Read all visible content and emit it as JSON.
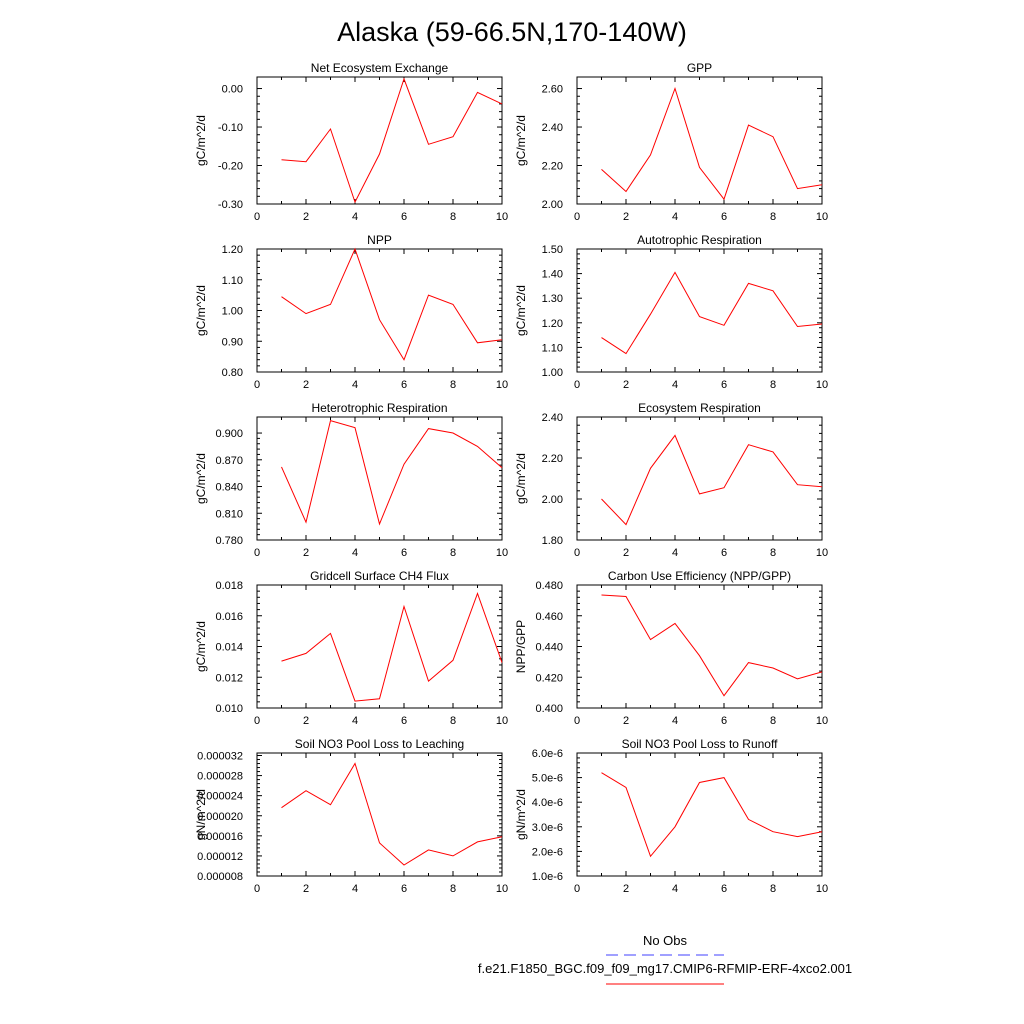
{
  "figure": {
    "title": "Alaska (59-66.5N,170-140W)"
  },
  "legend": {
    "entries": [
      {
        "label": "No Obs",
        "color": "#4040ff",
        "style": "dashed"
      },
      {
        "label": "f.e21.F1850_BGC.f09_f09_mg17.CMIP6-RFMIP-ERF-4xco2.001",
        "color": "#ff0000",
        "style": "solid"
      }
    ]
  },
  "chart_data": [
    {
      "type": "line",
      "title": "Net Ecosystem Exchange",
      "ylabel": "gC/m^2/d",
      "xlim": [
        0,
        10
      ],
      "ylim": [
        -0.3,
        0.03
      ],
      "xticks": [
        "0",
        "2",
        "4",
        "6",
        "8",
        "10"
      ],
      "yticks": [
        -0.3,
        -0.2,
        -0.1,
        0.0
      ],
      "ytick_labels": [
        "-0.30",
        "-0.20",
        "-0.10",
        "0.00"
      ],
      "series": [
        {
          "color": "#ff0000",
          "x": [
            1,
            2,
            3,
            4,
            5,
            6,
            7,
            8,
            9,
            10
          ],
          "y": [
            -0.185,
            -0.19,
            -0.105,
            -0.295,
            -0.17,
            0.025,
            -0.145,
            -0.125,
            -0.01,
            -0.04
          ]
        }
      ]
    },
    {
      "type": "line",
      "title": "GPP",
      "ylabel": "gC/m^2/d",
      "xlim": [
        0,
        10
      ],
      "ylim": [
        2.0,
        2.66
      ],
      "xticks": [
        "0",
        "2",
        "4",
        "6",
        "8",
        "10"
      ],
      "yticks": [
        2.0,
        2.2,
        2.4,
        2.6
      ],
      "ytick_labels": [
        "2.00",
        "2.20",
        "2.40",
        "2.60"
      ],
      "series": [
        {
          "color": "#ff0000",
          "x": [
            1,
            2,
            3,
            4,
            5,
            6,
            7,
            8,
            9,
            10
          ],
          "y": [
            2.18,
            2.065,
            2.255,
            2.6,
            2.19,
            2.025,
            2.41,
            2.35,
            2.08,
            2.1
          ]
        }
      ]
    },
    {
      "type": "line",
      "title": "NPP",
      "ylabel": "gC/m^2/d",
      "xlim": [
        0,
        10
      ],
      "ylim": [
        0.8,
        1.2
      ],
      "xticks": [
        "0",
        "2",
        "4",
        "6",
        "8",
        "10"
      ],
      "yticks": [
        0.8,
        0.9,
        1.0,
        1.1,
        1.2
      ],
      "ytick_labels": [
        "0.80",
        "0.90",
        "1.00",
        "1.10",
        "1.20"
      ],
      "series": [
        {
          "color": "#ff0000",
          "x": [
            1,
            2,
            3,
            4,
            5,
            6,
            7,
            8,
            9,
            10
          ],
          "y": [
            1.045,
            0.99,
            1.02,
            1.2,
            0.97,
            0.84,
            1.05,
            1.02,
            0.895,
            0.905
          ]
        }
      ]
    },
    {
      "type": "line",
      "title": "Autotrophic Respiration",
      "ylabel": "gC/m^2/d",
      "xlim": [
        0,
        10
      ],
      "ylim": [
        1.0,
        1.5
      ],
      "xticks": [
        "0",
        "2",
        "4",
        "6",
        "8",
        "10"
      ],
      "yticks": [
        1.0,
        1.1,
        1.2,
        1.3,
        1.4,
        1.5
      ],
      "ytick_labels": [
        "1.00",
        "1.10",
        "1.20",
        "1.30",
        "1.40",
        "1.50"
      ],
      "series": [
        {
          "color": "#ff0000",
          "x": [
            1,
            2,
            3,
            4,
            5,
            6,
            7,
            8,
            9,
            10
          ],
          "y": [
            1.14,
            1.075,
            1.235,
            1.405,
            1.225,
            1.19,
            1.36,
            1.33,
            1.185,
            1.195
          ]
        }
      ]
    },
    {
      "type": "line",
      "title": "Heterotrophic Respiration",
      "ylabel": "gC/m^2/d",
      "xlim": [
        0,
        10
      ],
      "ylim": [
        0.78,
        0.918
      ],
      "xticks": [
        "0",
        "2",
        "4",
        "6",
        "8",
        "10"
      ],
      "yticks": [
        0.78,
        0.81,
        0.84,
        0.87,
        0.9
      ],
      "ytick_labels": [
        "0.780",
        "0.810",
        "0.840",
        "0.870",
        "0.900"
      ],
      "series": [
        {
          "color": "#ff0000",
          "x": [
            1,
            2,
            3,
            4,
            5,
            6,
            7,
            8,
            9,
            10
          ],
          "y": [
            0.862,
            0.8,
            0.914,
            0.906,
            0.798,
            0.865,
            0.905,
            0.9,
            0.885,
            0.861
          ]
        }
      ]
    },
    {
      "type": "line",
      "title": "Ecosystem Respiration",
      "ylabel": "gC/m^2/d",
      "xlim": [
        0,
        10
      ],
      "ylim": [
        1.8,
        2.4
      ],
      "xticks": [
        "0",
        "2",
        "4",
        "6",
        "8",
        "10"
      ],
      "yticks": [
        1.8,
        2.0,
        2.2,
        2.4
      ],
      "ytick_labels": [
        "1.80",
        "2.00",
        "2.20",
        "2.40"
      ],
      "series": [
        {
          "color": "#ff0000",
          "x": [
            1,
            2,
            3,
            4,
            5,
            6,
            7,
            8,
            9,
            10
          ],
          "y": [
            2.0,
            1.875,
            2.15,
            2.31,
            2.025,
            2.055,
            2.265,
            2.23,
            2.07,
            2.06
          ]
        }
      ]
    },
    {
      "type": "line",
      "title": "Gridcell Surface CH4 Flux",
      "ylabel": "gC/m^2/d",
      "xlim": [
        0,
        10
      ],
      "ylim": [
        0.01,
        0.018
      ],
      "xticks": [
        "0",
        "2",
        "4",
        "6",
        "8",
        "10"
      ],
      "yticks": [
        0.01,
        0.012,
        0.014,
        0.016,
        0.018
      ],
      "ytick_labels": [
        "0.010",
        "0.012",
        "0.014",
        "0.016",
        "0.018"
      ],
      "series": [
        {
          "color": "#ff0000",
          "x": [
            1,
            2,
            3,
            4,
            5,
            6,
            7,
            8,
            9,
            10
          ],
          "y": [
            0.01305,
            0.01355,
            0.01485,
            0.01045,
            0.0106,
            0.0166,
            0.01175,
            0.0131,
            0.01745,
            0.01295
          ]
        }
      ]
    },
    {
      "type": "line",
      "title": "Carbon Use Efficiency (NPP/GPP)",
      "ylabel": "NPP/GPP",
      "xlim": [
        0,
        10
      ],
      "ylim": [
        0.4,
        0.48
      ],
      "xticks": [
        "0",
        "2",
        "4",
        "6",
        "8",
        "10"
      ],
      "yticks": [
        0.4,
        0.42,
        0.44,
        0.46,
        0.48
      ],
      "ytick_labels": [
        "0.400",
        "0.420",
        "0.440",
        "0.460",
        "0.480"
      ],
      "series": [
        {
          "color": "#ff0000",
          "x": [
            1,
            2,
            3,
            4,
            5,
            6,
            7,
            8,
            9,
            10
          ],
          "y": [
            0.4735,
            0.4725,
            0.4445,
            0.455,
            0.434,
            0.408,
            0.4295,
            0.426,
            0.419,
            0.4235
          ]
        }
      ]
    },
    {
      "type": "line",
      "title": "Soil NO3 Pool Loss to Leaching",
      "ylabel": "gN/m^2/d",
      "xlim": [
        0,
        10
      ],
      "ylim": [
        8e-06,
        3.25e-05
      ],
      "xticks": [
        "0",
        "2",
        "4",
        "6",
        "8",
        "10"
      ],
      "yticks": [
        8e-06,
        1.2e-05,
        1.6e-05,
        2e-05,
        2.4e-05,
        2.8e-05,
        3.2e-05
      ],
      "ytick_labels": [
        "0.000008",
        "0.000012",
        "0.000016",
        "0.000020",
        "0.000024",
        "0.000028",
        "0.000032"
      ],
      "series": [
        {
          "color": "#ff0000",
          "x": [
            1,
            2,
            3,
            4,
            5,
            6,
            7,
            8,
            9,
            10
          ],
          "y": [
            2.16e-05,
            2.5e-05,
            2.22e-05,
            3.04e-05,
            1.46e-05,
            1.02e-05,
            1.32e-05,
            1.2e-05,
            1.48e-05,
            1.58e-05
          ]
        }
      ]
    },
    {
      "type": "line",
      "title": "Soil NO3 Pool Loss to Runoff",
      "ylabel": "gN/m^2/d",
      "xlim": [
        0,
        10
      ],
      "ylim": [
        1e-06,
        6e-06
      ],
      "xticks": [
        "0",
        "2",
        "4",
        "6",
        "8",
        "10"
      ],
      "yticks": [
        1e-06,
        2e-06,
        3e-06,
        4e-06,
        5e-06,
        6e-06
      ],
      "ytick_labels": [
        "1.0e-6",
        "2.0e-6",
        "3.0e-6",
        "4.0e-6",
        "5.0e-6",
        "6.0e-6"
      ],
      "series": [
        {
          "color": "#ff0000",
          "x": [
            1,
            2,
            3,
            4,
            5,
            6,
            7,
            8,
            9,
            10
          ],
          "y": [
            5.2e-06,
            4.6e-06,
            1.8e-06,
            3e-06,
            4.8e-06,
            5e-06,
            3.3e-06,
            2.8e-06,
            2.6e-06,
            2.8e-06
          ]
        }
      ]
    }
  ]
}
